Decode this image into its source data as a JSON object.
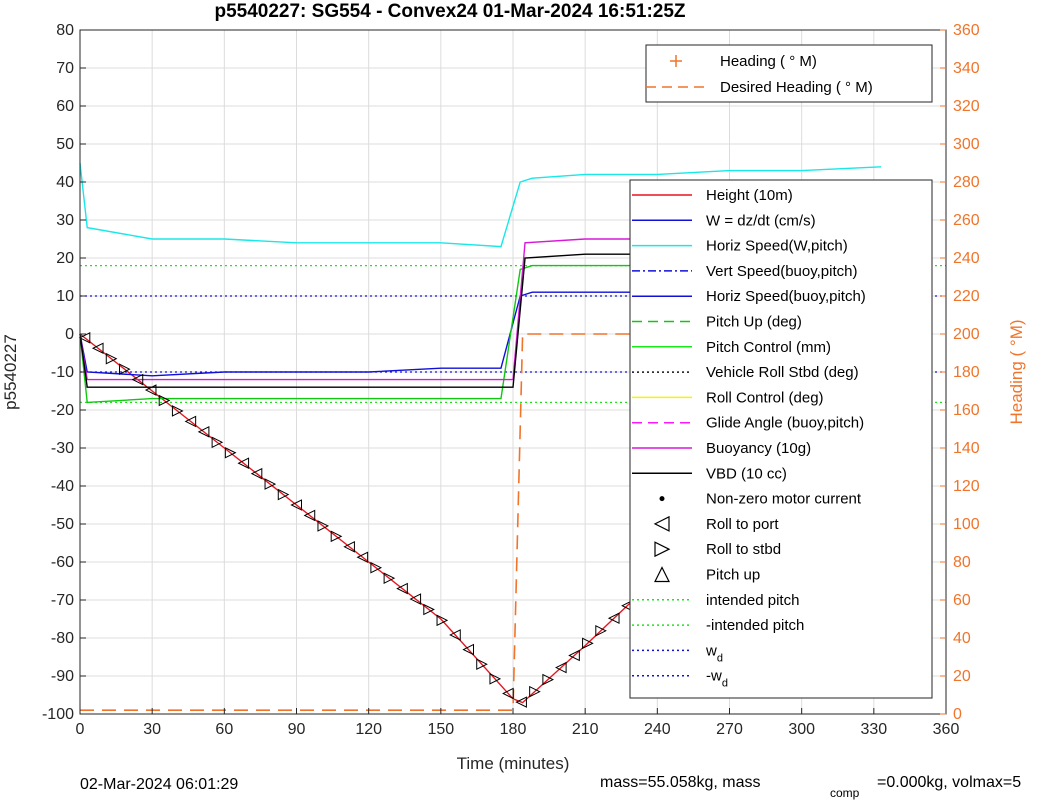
{
  "chart_data": {
    "type": "line",
    "title": "p5540227: SG554 - Convex24 01-Mar-2024 16:51:25Z",
    "xlabel": "Time (minutes)",
    "ylabel": "p5540227",
    "y2label": "Heading (  °M)",
    "xlim": [
      0,
      360
    ],
    "ylim": [
      -100,
      80
    ],
    "y2lim": [
      0,
      360
    ],
    "xticks": [
      0,
      30,
      60,
      90,
      120,
      150,
      180,
      210,
      240,
      270,
      300,
      330,
      360
    ],
    "yticks": [
      -100,
      -90,
      -80,
      -70,
      -60,
      -50,
      -40,
      -30,
      -20,
      -10,
      0,
      10,
      20,
      30,
      40,
      50,
      60,
      70,
      80
    ],
    "y2ticks": [
      0,
      20,
      40,
      60,
      80,
      100,
      120,
      140,
      160,
      180,
      200,
      220,
      240,
      260,
      280,
      300,
      320,
      340,
      360
    ],
    "grid": true,
    "legend_placement": "right",
    "heading_legend": [
      {
        "name": "Heading (  ° M)",
        "color": "#f0742a",
        "style": "plus"
      },
      {
        "name": "Desired Heading (  ° M)",
        "color": "#f0742a",
        "style": "dash"
      }
    ],
    "legend": [
      {
        "name": "Height (10m)",
        "color": "#e8141e",
        "style": "solid"
      },
      {
        "name": "W = dz/dt (cm/s)",
        "color": "#1010d8",
        "style": "solid"
      },
      {
        "name": "Horiz Speed(W,pitch)",
        "color": "#18e8e8",
        "style": "solid"
      },
      {
        "name": "Vert Speed(buoy,pitch)",
        "color": "#1010d8",
        "style": "dashdot"
      },
      {
        "name": "Horiz Speed(buoy,pitch)",
        "color": "#1010d8",
        "style": "solid"
      },
      {
        "name": "Pitch Up (deg)",
        "color": "#10c810",
        "style": "dash"
      },
      {
        "name": "Pitch Control (mm)",
        "color": "#18e818",
        "style": "solid"
      },
      {
        "name": "Vehicle Roll Stbd (deg)",
        "color": "#101010",
        "style": "dot"
      },
      {
        "name": "Roll Control (deg)",
        "color": "#f5f500",
        "style": "solid"
      },
      {
        "name": "Glide Angle (buoy,pitch)",
        "color": "#ff18ff",
        "style": "dash"
      },
      {
        "name": "Buoyancy (10g)",
        "color": "#d818d8",
        "style": "solid"
      },
      {
        "name": "VBD (10 cc)",
        "color": "#000000",
        "style": "solid"
      },
      {
        "name": "Non-zero motor current",
        "color": "#000000",
        "style": "dot-marker"
      },
      {
        "name": "Roll to port",
        "color": "#000000",
        "style": "tri-left"
      },
      {
        "name": "Roll to stbd",
        "color": "#000000",
        "style": "tri-right"
      },
      {
        "name": "Pitch up",
        "color": "#000000",
        "style": "tri-up"
      },
      {
        "name": "intended pitch",
        "color": "#18e818",
        "style": "dot"
      },
      {
        "name": "-intended pitch",
        "color": "#18e818",
        "style": "dot"
      },
      {
        "name": "w",
        "subscript": "d",
        "color": "#1010d8",
        "style": "dot"
      },
      {
        "name": "-w",
        "subscript": "d",
        "color": "#1010d8",
        "style": "dot"
      }
    ],
    "series": [
      {
        "name": "Height (10m)",
        "x": [
          0,
          30,
          60,
          90,
          120,
          150,
          180,
          184,
          210,
          240,
          270,
          300,
          333
        ],
        "y": [
          0,
          -15,
          -30,
          -45,
          -60,
          -75,
          -96,
          -97,
          -82,
          -64,
          -46,
          -25,
          0
        ]
      },
      {
        "name": "W = dz/dt (cm/s)",
        "x": [
          0,
          3,
          30,
          60,
          90,
          120,
          150,
          175,
          183,
          188,
          210,
          240,
          270,
          300,
          333
        ],
        "y": [
          0,
          -10,
          -11,
          -10,
          -10,
          -10,
          -9,
          -9,
          10,
          11,
          11,
          11,
          11,
          11,
          11
        ]
      },
      {
        "name": "Horiz Speed(W,pitch)",
        "x": [
          0,
          3,
          30,
          60,
          90,
          120,
          150,
          175,
          183,
          188,
          210,
          240,
          270,
          300,
          333
        ],
        "y": [
          45,
          28,
          25,
          25,
          24,
          24,
          24,
          23,
          40,
          41,
          42,
          42,
          43,
          43,
          44
        ]
      },
      {
        "name": "Pitch Up (deg)",
        "x": [
          0,
          3,
          30,
          60,
          90,
          120,
          150,
          175,
          183,
          188,
          210,
          240,
          270,
          300,
          333
        ],
        "y": [
          0,
          -18,
          -17,
          -17,
          -17,
          -17,
          -17,
          -17,
          17,
          18,
          18,
          18,
          18,
          18,
          18
        ]
      },
      {
        "name": "Buoyancy (10g)",
        "x": [
          0,
          3,
          30,
          60,
          90,
          120,
          150,
          180,
          185,
          210,
          240,
          270,
          300,
          333
        ],
        "y": [
          0,
          -12,
          -12,
          -12,
          -12,
          -12,
          -12,
          -12,
          24,
          25,
          25,
          26,
          26,
          27
        ]
      },
      {
        "name": "VBD (10 cc)",
        "x": [
          0,
          3,
          30,
          60,
          90,
          120,
          150,
          180,
          185,
          210,
          240,
          270,
          300,
          333
        ],
        "y": [
          0,
          -14,
          -14,
          -14,
          -14,
          -14,
          -14,
          -14,
          20,
          21,
          21,
          23,
          24,
          25
        ]
      },
      {
        "name": "Desired Heading (  ° M)",
        "axis": "right",
        "x": [
          0,
          180,
          184,
          333
        ],
        "y": [
          2,
          2,
          200,
          200
        ]
      }
    ],
    "reference_lines": [
      {
        "name": "intended pitch",
        "y": 18
      },
      {
        "name": "-intended pitch",
        "y": -18
      },
      {
        "name": "w_d",
        "y": 10
      },
      {
        "name": "-w_d",
        "y": -10
      }
    ]
  },
  "footer": {
    "start_time": "02-Mar-2024 06:01:29",
    "mass_text": "mass=55.058kg, mass",
    "comp_sub": "comp",
    "comp_text": "=0.000kg, volmax=5"
  }
}
